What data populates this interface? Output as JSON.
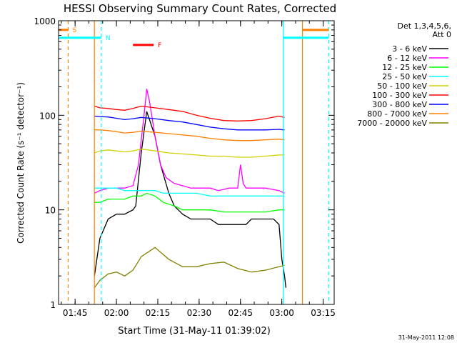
{
  "chart_data": {
    "type": "line",
    "title": "HESSI Observing Summary Count Rates, Corrected",
    "xlabel": "Start Time (31-May-11 01:39:02)",
    "ylabel": "Corrected Count Rate (s⁻¹ detector⁻¹)",
    "x_unit": "minutes after 01:39:02",
    "xlim": [
      0,
      100
    ],
    "ylim": [
      1,
      1000
    ],
    "yscale": "log",
    "x_ticks": [
      {
        "x": 6,
        "label": "01:45"
      },
      {
        "x": 21,
        "label": "02:00"
      },
      {
        "x": 36,
        "label": "02:15"
      },
      {
        "x": 51,
        "label": "02:30"
      },
      {
        "x": 66,
        "label": "02:45"
      },
      {
        "x": 81,
        "label": "03:00"
      },
      {
        "x": 96,
        "label": "03:15"
      }
    ],
    "y_ticks": [
      {
        "y": 1,
        "label": "1"
      },
      {
        "y": 10,
        "label": "10"
      },
      {
        "y": 100,
        "label": "100"
      },
      {
        "y": 1000,
        "label": "1000"
      }
    ],
    "legend_header": [
      "Det 1,3,4,5,6,",
      "Att 0"
    ],
    "legend_position": "right",
    "timestamp": "31-May-2011 12:08",
    "series": [
      {
        "name": "3 - 6 keV",
        "color": "#000000",
        "x": [
          13,
          15,
          18,
          21,
          24,
          27,
          28,
          30,
          32,
          35,
          37,
          40,
          42,
          45,
          48,
          52,
          55,
          58,
          62,
          65,
          68,
          70,
          72,
          75,
          78,
          80,
          81,
          82,
          82.5
        ],
        "y": [
          2,
          5,
          8,
          9,
          9,
          10,
          11,
          40,
          110,
          60,
          30,
          15,
          11,
          9,
          8,
          8,
          8,
          7,
          7,
          7,
          7,
          8,
          8,
          8,
          8,
          7,
          3,
          2,
          1.5
        ]
      },
      {
        "name": "6 - 12 keV",
        "color": "#ff00ff",
        "x": [
          13,
          15,
          18,
          21,
          24,
          27,
          29,
          31,
          32,
          33,
          35,
          37,
          39,
          42,
          45,
          48,
          52,
          55,
          58,
          62,
          65,
          66,
          67,
          68,
          70,
          75,
          80,
          82
        ],
        "y": [
          15,
          16,
          17,
          17,
          17,
          18,
          30,
          100,
          190,
          140,
          60,
          30,
          22,
          19,
          18,
          17,
          17,
          17,
          16,
          17,
          17,
          30,
          19,
          17,
          17,
          17,
          16,
          15
        ]
      },
      {
        "name": "12 - 25 keV",
        "color": "#00ff00",
        "x": [
          13,
          15,
          18,
          21,
          24,
          27,
          30,
          32,
          35,
          38,
          42,
          45,
          50,
          55,
          60,
          65,
          70,
          75,
          80,
          82
        ],
        "y": [
          12,
          12,
          13,
          13,
          13,
          14,
          14,
          15,
          14,
          12,
          11,
          10,
          10,
          10,
          9.5,
          9.5,
          9.5,
          9.5,
          10,
          10
        ]
      },
      {
        "name": "25 - 50 keV",
        "color": "#00ffff",
        "x": [
          13,
          15,
          18,
          21,
          24,
          27,
          30,
          32,
          35,
          38,
          42,
          45,
          50,
          55,
          60,
          65,
          70,
          75,
          80,
          82
        ],
        "y": [
          17,
          17,
          17,
          17,
          16,
          16,
          16,
          16,
          16,
          15,
          15,
          15,
          15,
          14,
          14,
          14,
          14,
          14,
          14,
          14
        ]
      },
      {
        "name": "50 - 100 keV",
        "color": "#d0d000",
        "x": [
          13,
          15,
          18,
          21,
          24,
          27,
          30,
          35,
          40,
          45,
          50,
          55,
          60,
          65,
          70,
          75,
          80,
          82
        ],
        "y": [
          40,
          42,
          43,
          42,
          41,
          42,
          44,
          42,
          40,
          39,
          38,
          37,
          37,
          36,
          36,
          37,
          38,
          38
        ]
      },
      {
        "name": "100 - 300 keV",
        "color": "#ff0000",
        "x": [
          13,
          15,
          18,
          21,
          24,
          27,
          30,
          35,
          40,
          45,
          50,
          55,
          60,
          65,
          70,
          75,
          80,
          82
        ],
        "y": [
          125,
          120,
          118,
          115,
          113,
          118,
          125,
          120,
          115,
          110,
          100,
          93,
          88,
          87,
          88,
          92,
          98,
          95
        ]
      },
      {
        "name": "300 - 800 keV",
        "color": "#0000ff",
        "x": [
          13,
          15,
          18,
          21,
          24,
          27,
          30,
          35,
          40,
          45,
          50,
          55,
          60,
          65,
          70,
          75,
          80,
          82
        ],
        "y": [
          98,
          97,
          96,
          93,
          90,
          92,
          95,
          92,
          88,
          85,
          80,
          75,
          72,
          70,
          70,
          70,
          71,
          70
        ]
      },
      {
        "name": "800 - 7000 keV",
        "color": "#ff8000",
        "x": [
          13,
          15,
          18,
          21,
          24,
          27,
          30,
          35,
          40,
          45,
          50,
          55,
          60,
          65,
          70,
          75,
          80,
          82
        ],
        "y": [
          70,
          70,
          69,
          67,
          65,
          66,
          68,
          66,
          64,
          62,
          60,
          57,
          55,
          54,
          54,
          55,
          56,
          55
        ]
      },
      {
        "name": "7000 - 20000 keV",
        "color": "#808000",
        "x": [
          13,
          15,
          18,
          21,
          24,
          27,
          30,
          35,
          40,
          45,
          50,
          55,
          60,
          65,
          70,
          75,
          80,
          82
        ],
        "y": [
          1.5,
          1.8,
          2.1,
          2.2,
          2.0,
          2.3,
          3.2,
          4.0,
          3.0,
          2.5,
          2.5,
          2.7,
          2.8,
          2.4,
          2.2,
          2.3,
          2.5,
          2.6
        ]
      }
    ],
    "markers": {
      "vlines": [
        {
          "x": 3.5,
          "color": "#ff8000",
          "style": "dashed"
        },
        {
          "x": 13,
          "color": "#ff8000",
          "style": "solid"
        },
        {
          "x": 15.5,
          "color": "#00ffff",
          "style": "dashed"
        },
        {
          "x": 81.5,
          "color": "#00ffff",
          "style": "solid"
        },
        {
          "x": 88.5,
          "color": "#ff8000",
          "style": "solid"
        },
        {
          "x": 98,
          "color": "#00ffff",
          "style": "dashed"
        }
      ],
      "bars": [
        {
          "label": "S",
          "color": "#ff8000",
          "x0": 0,
          "x1": 3.5,
          "y": 800
        },
        {
          "label": "N",
          "color": "#00ffff",
          "x0": 0,
          "x1": 15.5,
          "y": 660
        },
        {
          "label": "",
          "color": "#ff8000",
          "x0": 88.5,
          "x1": 98,
          "y": 800
        },
        {
          "label": "",
          "color": "#00ffff",
          "x0": 81.5,
          "x1": 98,
          "y": 660
        },
        {
          "label": "F",
          "color": "#ff0000",
          "x0": 27,
          "x1": 34.5,
          "y": 555
        }
      ]
    }
  }
}
